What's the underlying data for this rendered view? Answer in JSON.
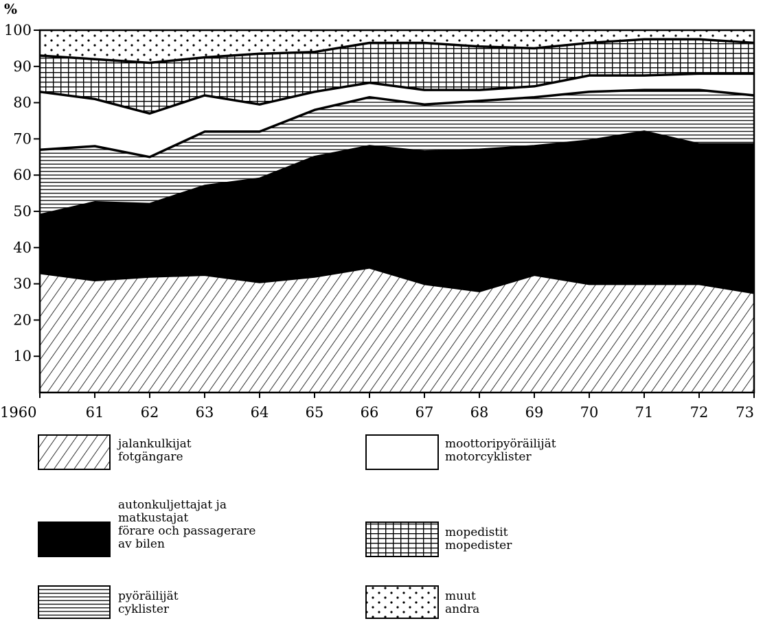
{
  "chart_data": {
    "type": "area",
    "stacked": true,
    "percent": true,
    "title": "",
    "xlabel": "",
    "ylabel": "%",
    "ylim": [
      0,
      100
    ],
    "x": [
      "1960",
      "61",
      "62",
      "63",
      "64",
      "65",
      "66",
      "67",
      "68",
      "69",
      "70",
      "71",
      "72",
      "73"
    ],
    "yticks": [
      "10",
      "20",
      "30",
      "40",
      "50",
      "60",
      "70",
      "80",
      "90",
      "100"
    ],
    "series": [
      {
        "key": "pedestrians",
        "name": "jalankulkijat\nfotgängare",
        "pattern": "diagonal-hatch",
        "values": [
          33,
          31,
          32,
          32.5,
          30.5,
          32,
          34.5,
          30,
          28,
          32.5,
          30,
          30,
          30,
          27.5
        ]
      },
      {
        "key": "car",
        "name": "autonkuljettajat ja\nmatkustajat\nförare och passagerare\nav bilen",
        "pattern": "solid-black",
        "values": [
          16,
          21.5,
          20,
          24.5,
          28.5,
          33,
          33.5,
          36.5,
          39,
          35.5,
          39.5,
          42,
          38.5,
          41
        ]
      },
      {
        "key": "cyclists",
        "name": "pyöräilijät\ncyklister",
        "pattern": "horizontal-lines",
        "values": [
          18,
          15.5,
          13,
          15,
          13,
          13,
          13.5,
          13,
          13.5,
          13.5,
          13.5,
          11.5,
          15,
          13.5
        ]
      },
      {
        "key": "motorcyclists",
        "name": "moottoripyöräilijät\nmotorcyklister",
        "pattern": "white",
        "values": [
          16,
          13,
          12,
          10,
          7.5,
          5,
          4,
          4,
          3,
          3,
          4.5,
          4,
          4.5,
          6
        ]
      },
      {
        "key": "mopeds",
        "name": "mopedistit\nmopedister",
        "pattern": "grid",
        "values": [
          10,
          11,
          14,
          10.5,
          14,
          11,
          11,
          13,
          12,
          10.5,
          9,
          10,
          9.5,
          8.5
        ]
      },
      {
        "key": "other",
        "name": "muut\nandra",
        "pattern": "dots",
        "values": [
          7,
          8,
          9,
          7.5,
          6.5,
          6,
          3.5,
          3.5,
          4.5,
          5,
          3.5,
          2.5,
          2.5,
          3.5
        ]
      }
    ],
    "legend": {
      "placement": "bottom",
      "items": [
        {
          "key": "pedestrians",
          "lines": [
            "jalankulkijat",
            "fotgängare"
          ]
        },
        {
          "key": "motorcyclists",
          "lines": [
            "moottoripyöräilijät",
            "motorcyklister"
          ]
        },
        {
          "key": "car",
          "lines": [
            "autonkuljettajat ja",
            "matkustajat",
            "förare och passagerare",
            "av bilen"
          ]
        },
        {
          "key": "mopeds",
          "lines": [
            "mopedistit",
            "mopedister"
          ]
        },
        {
          "key": "cyclists",
          "lines": [
            "pyöräilijät",
            "cyklister"
          ]
        },
        {
          "key": "other",
          "lines": [
            "muut",
            "andra"
          ]
        }
      ]
    }
  }
}
